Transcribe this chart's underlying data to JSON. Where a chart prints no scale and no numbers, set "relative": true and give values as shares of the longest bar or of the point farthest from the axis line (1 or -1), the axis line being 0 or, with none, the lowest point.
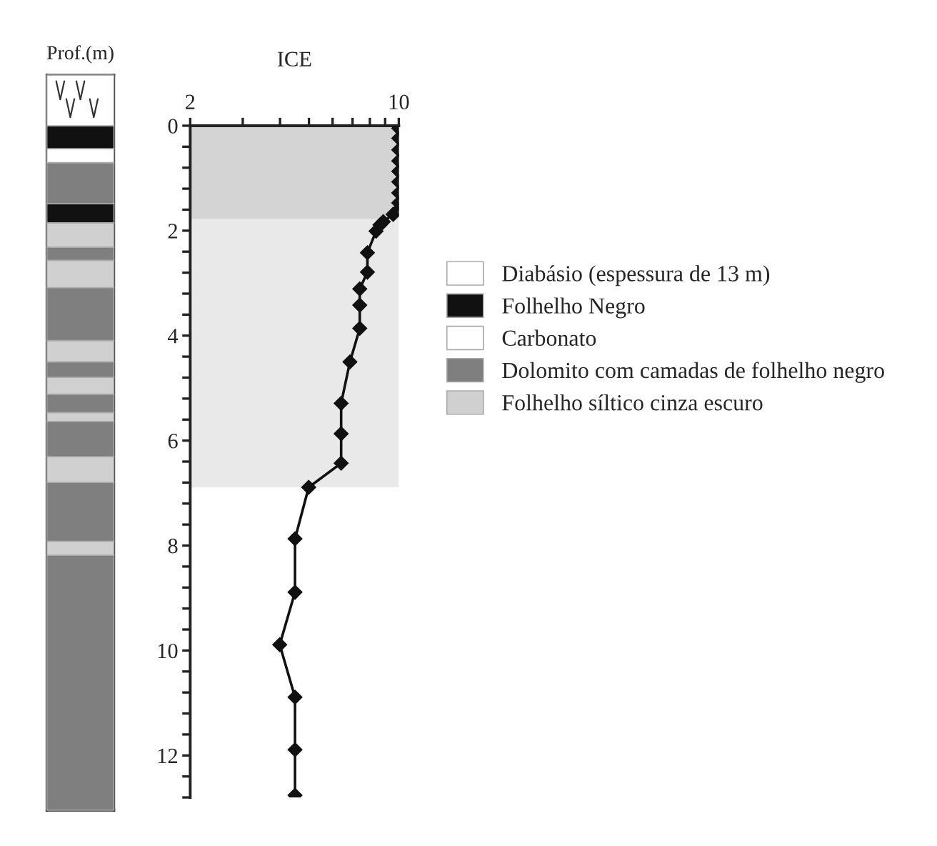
{
  "chart_data": [
    {
      "type": "bar",
      "title": "Prof.(m)",
      "stacked": true,
      "relative": true,
      "categories": [
        null
      ],
      "legend": "right",
      "series": [
        {
          "color": "#7f7f7f",
          "values": [
            0.347
          ]
        },
        {
          "color": "#d0d0d0",
          "values": [
            0.019
          ]
        },
        {
          "color": "#7f7f7f",
          "values": [
            0.08
          ]
        },
        {
          "color": "#d0d0d0",
          "values": [
            0.035
          ]
        },
        {
          "color": "#7f7f7f",
          "values": [
            0.048
          ]
        },
        {
          "color": "#d0d0d0",
          "values": [
            0.012
          ]
        },
        {
          "color": "#7f7f7f",
          "values": [
            0.025
          ]
        },
        {
          "color": "#d0d0d0",
          "values": [
            0.023
          ]
        },
        {
          "color": "#7f7f7f",
          "values": [
            0.021
          ]
        },
        {
          "color": "#d0d0d0",
          "values": [
            0.029
          ]
        },
        {
          "color": "#7f7f7f",
          "values": [
            0.072
          ]
        },
        {
          "color": "#d0d0d0",
          "values": [
            0.037
          ]
        },
        {
          "color": "#7f7f7f",
          "values": [
            0.018
          ]
        },
        {
          "name": "Folhelho síltico cinza escuro",
          "color": "#d0d0d0",
          "values": [
            0.033
          ]
        },
        {
          "color": "#111111",
          "values": [
            0.026
          ]
        },
        {
          "name": "Dolomito com camadas de folhelho negro",
          "color": "#7f7f7f",
          "values": [
            0.056
          ]
        },
        {
          "name": "Carbonato",
          "color": "#ffffff",
          "values": [
            0.019
          ]
        },
        {
          "name": "Folhelho Negro",
          "color": "#111111",
          "values": [
            0.031
          ]
        },
        {
          "name": "Diabásio (espessura de 13 m)",
          "color": "#ffffff",
          "values": [
            0.069
          ]
        }
      ]
    },
    {
      "type": "line",
      "xlabel": "ICE",
      "log": "x",
      "xlim": [
        2,
        10
      ],
      "ylim": [
        12.8,
        0
      ],
      "marker": "diamond",
      "line_style": "solid",
      "grid": false,
      "xticks": [
        2,
        {
          "value": 3,
          "label": null
        },
        {
          "value": 4,
          "label": null
        },
        {
          "value": 5,
          "label": null
        },
        {
          "value": 6,
          "label": null
        },
        {
          "value": 7,
          "label": null
        },
        {
          "value": 8,
          "label": null
        },
        {
          "value": 9,
          "label": null
        },
        10
      ],
      "yticks": [
        0,
        {
          "value": 0.4,
          "label": null
        },
        {
          "value": 0.8,
          "label": null
        },
        {
          "value": 1.2,
          "label": null
        },
        {
          "value": 1.6,
          "label": null
        },
        2,
        {
          "value": 2.4,
          "label": null
        },
        {
          "value": 2.8,
          "label": null
        },
        {
          "value": 3.2,
          "label": null
        },
        {
          "value": 3.6,
          "label": null
        },
        4,
        {
          "value": 4.4,
          "label": null
        },
        {
          "value": 4.8,
          "label": null
        },
        {
          "value": 5.2,
          "label": null
        },
        {
          "value": 5.6,
          "label": null
        },
        6,
        {
          "value": 6.4,
          "label": null
        },
        {
          "value": 6.8,
          "label": null
        },
        {
          "value": 7.2,
          "label": null
        },
        {
          "value": 7.6,
          "label": null
        },
        8,
        {
          "value": 8.4,
          "label": null
        },
        {
          "value": 8.8,
          "label": null
        },
        {
          "value": 9.2,
          "label": null
        },
        {
          "value": 9.6,
          "label": null
        },
        10,
        {
          "value": 10.4,
          "label": null
        },
        {
          "value": 10.8,
          "label": null
        },
        {
          "value": 11.2,
          "label": null
        },
        {
          "value": 11.6,
          "label": null
        },
        12,
        {
          "value": 12.4,
          "label": null
        },
        {
          "value": 12.8,
          "label": null
        }
      ],
      "bands": [
        {
          "axis": "y",
          "from": 0,
          "to": 1.78,
          "color": "#d4d4d4"
        },
        {
          "axis": "y",
          "from": 1.78,
          "to": 6.89,
          "color": "#e9e9e9"
        }
      ],
      "series": [
        {
          "color": "#111111",
          "x": [
            10,
            10,
            10,
            10,
            10,
            10,
            10,
            10,
            10,
            9.57,
            8.87,
            8.65,
            8.39,
            7.85,
            7.85,
            7.4,
            7.4,
            7.4,
            6.86,
            6.41,
            6.41,
            6.41,
            4.99,
            4.49,
            4.49,
            3.99,
            4.49,
            4.49,
            4.49
          ],
          "values": [
            0.05,
            0.24,
            0.46,
            0.67,
            0.87,
            1.07,
            1.28,
            1.47,
            1.6,
            1.69,
            1.83,
            1.89,
            2.01,
            2.42,
            2.79,
            3.11,
            3.42,
            3.86,
            4.5,
            5.29,
            5.87,
            6.43,
            6.89,
            7.87,
            8.89,
            9.89,
            10.89,
            11.89,
            12.76
          ]
        }
      ]
    }
  ]
}
